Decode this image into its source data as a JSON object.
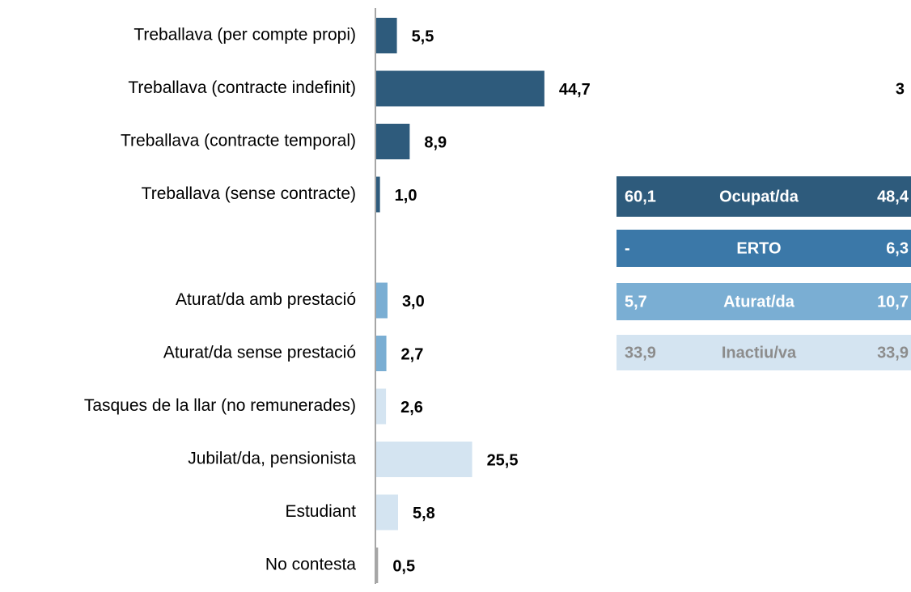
{
  "chart_data": {
    "type": "bar",
    "orientation": "horizontal",
    "categories": [
      "Treballava (per compte propi)",
      "Treballava (contracte indefinit)",
      "Treballava (contracte temporal)",
      "Treballava (sense contracte)",
      null,
      "Aturat/da amb prestació",
      "Aturat/da sense prestació",
      "Tasques de la llar (no remunerades)",
      "Jubilat/da, pensionista",
      "Estudiant",
      "No contesta"
    ],
    "values": [
      5.5,
      44.7,
      8.9,
      1.0,
      null,
      3.0,
      2.7,
      2.6,
      25.5,
      5.8,
      0.5
    ],
    "value_labels": [
      "5,5",
      "44,7",
      "8,9",
      "1,0",
      null,
      "3,0",
      "2,7",
      "2,6",
      "25,5",
      "5,8",
      "0,5"
    ],
    "colors": [
      "#2e5b7c",
      "#2e5b7c",
      "#2e5b7c",
      "#2e5b7c",
      null,
      "#7aaed3",
      "#7aaed3",
      "#d4e4f1",
      "#d4e4f1",
      "#d4e4f1",
      "#a6a6a6"
    ],
    "annotation": "3"
  },
  "table": {
    "rows": [
      [
        "60,1",
        "Ocupat/da",
        "48,4"
      ],
      [
        "-",
        "ERTO",
        "6,3"
      ],
      [
        "5,7",
        "Aturat/da",
        "10,7"
      ],
      [
        "33,9",
        "Inactiu/va",
        "33,9"
      ]
    ],
    "row_colors": [
      "#2e5b7c",
      "#3b78a8",
      "#7aaed3",
      "#d4e4f1"
    ],
    "text_colors": [
      "#ffffff",
      "#ffffff",
      "#ffffff",
      "#8c8c8c"
    ]
  }
}
